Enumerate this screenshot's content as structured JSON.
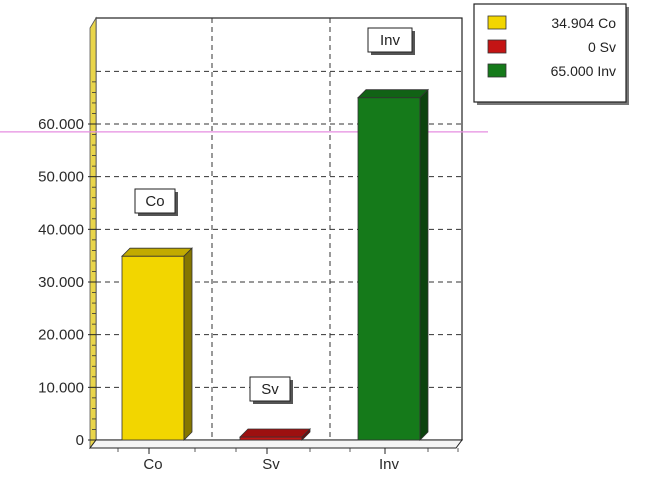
{
  "chart_data": {
    "type": "bar",
    "categories": [
      "Co",
      "Sv",
      "Inv"
    ],
    "values": [
      34.904,
      0,
      65.0
    ],
    "colors": [
      "#f2d600",
      "#c41414",
      "#157a1a"
    ],
    "y_tick_labels": [
      "0",
      "10.000",
      "20.000",
      "30.000",
      "40.000",
      "50.000",
      "60.000"
    ],
    "y_ticks": [
      0,
      10,
      20,
      30,
      40,
      50,
      60
    ],
    "ylim": [
      0,
      75
    ],
    "data_labels": [
      "Co",
      "Sv",
      "Inv"
    ],
    "legend": [
      {
        "label": "34.904 Co",
        "color": "#f2d600"
      },
      {
        "label": "0 Sv",
        "color": "#c41414"
      },
      {
        "label": "65.000 Inv",
        "color": "#157a1a"
      }
    ],
    "legend_position": "top-right",
    "grid": true,
    "reference_line_value": 58.5,
    "reference_line_color": "#e58ee0"
  }
}
